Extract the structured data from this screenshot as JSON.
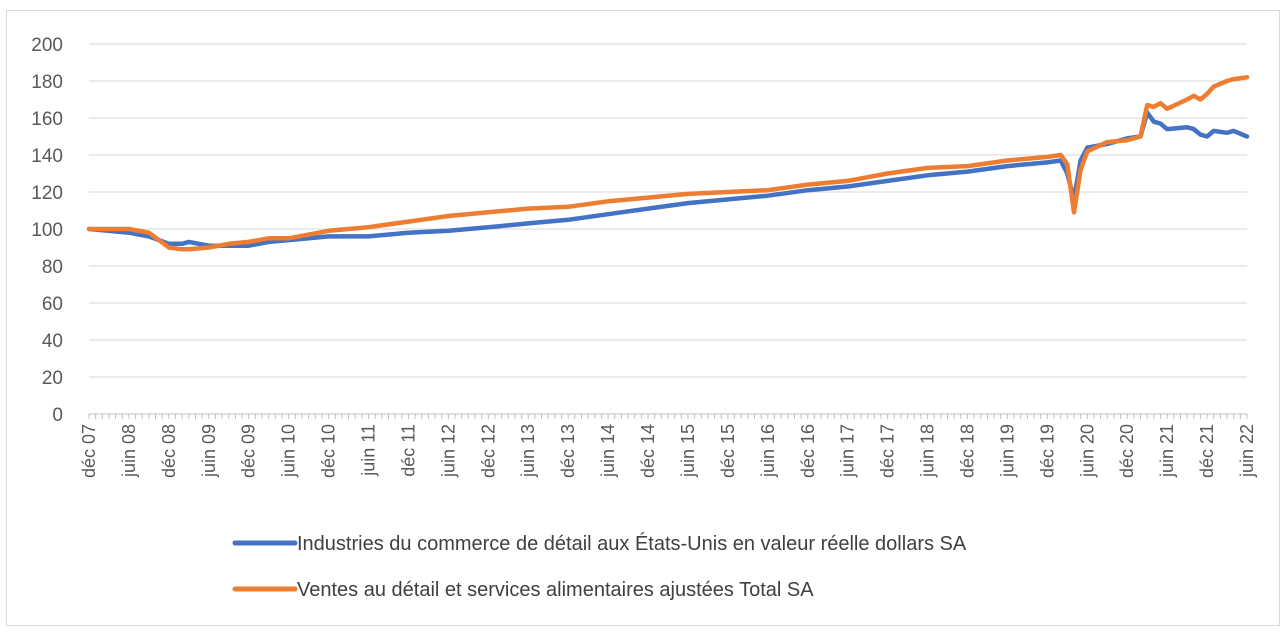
{
  "chart_data": {
    "type": "line",
    "title": "",
    "xlabel": "",
    "ylabel": "",
    "ylim": [
      0,
      200
    ],
    "yticks": [
      0,
      20,
      40,
      60,
      80,
      100,
      120,
      140,
      160,
      180,
      200
    ],
    "grid": "horizontal",
    "legend_position": "bottom",
    "x_start": "déc 07",
    "x_end": "juin 22",
    "xtick_labels": [
      "déc 07",
      "juin 08",
      "déc 08",
      "juin 09",
      "déc 09",
      "juin 10",
      "déc 10",
      "juin 11",
      "déc 11",
      "juin 12",
      "déc 12",
      "juin 13",
      "déc 13",
      "juin 14",
      "déc 14",
      "juin 15",
      "déc 15",
      "juin 16",
      "déc 16",
      "juin 17",
      "déc 17",
      "juin 18",
      "déc 18",
      "juin 19",
      "déc 19",
      "juin 20",
      "déc 20",
      "juin 21",
      "déc 21",
      "juin 22"
    ],
    "series": [
      {
        "name": "Industries du commerce de détail aux États-Unis en valeur réelle dollars SA",
        "color": "#4472c4",
        "points": [
          [
            "déc 07",
            100
          ],
          [
            "juin 08",
            98
          ],
          [
            "sept 08",
            96
          ],
          [
            "déc 08",
            92
          ],
          [
            "févr 09",
            92
          ],
          [
            "mars 09",
            93
          ],
          [
            "juin 09",
            91
          ],
          [
            "sept 09",
            91
          ],
          [
            "déc 09",
            91
          ],
          [
            "mars 10",
            93
          ],
          [
            "juin 10",
            94
          ],
          [
            "déc 10",
            96
          ],
          [
            "juin 11",
            96
          ],
          [
            "déc 11",
            98
          ],
          [
            "juin 12",
            99
          ],
          [
            "déc 12",
            101
          ],
          [
            "juin 13",
            103
          ],
          [
            "déc 13",
            105
          ],
          [
            "juin 14",
            108
          ],
          [
            "déc 14",
            111
          ],
          [
            "juin 15",
            114
          ],
          [
            "déc 15",
            116
          ],
          [
            "juin 16",
            118
          ],
          [
            "déc 16",
            121
          ],
          [
            "juin 17",
            123
          ],
          [
            "déc 17",
            126
          ],
          [
            "juin 18",
            129
          ],
          [
            "déc 18",
            131
          ],
          [
            "juin 19",
            134
          ],
          [
            "déc 19",
            136
          ],
          [
            "févr 20",
            137
          ],
          [
            "mars 20",
            130
          ],
          [
            "avr 20",
            116
          ],
          [
            "mai 20",
            137
          ],
          [
            "juin 20",
            144
          ],
          [
            "sept 20",
            146
          ],
          [
            "déc 20",
            149
          ],
          [
            "févr 21",
            150
          ],
          [
            "mars 21",
            163
          ],
          [
            "avr 21",
            158
          ],
          [
            "mai 21",
            157
          ],
          [
            "juin 21",
            154
          ],
          [
            "sept 21",
            155
          ],
          [
            "oct 21",
            154
          ],
          [
            "nov 21",
            151
          ],
          [
            "déc 21",
            150
          ],
          [
            "janv 22",
            153
          ],
          [
            "mars 22",
            152
          ],
          [
            "avr 22",
            153
          ],
          [
            "juin 22",
            150
          ]
        ]
      },
      {
        "name": "Ventes au détail et services alimentaires ajustées Total SA",
        "color": "#ed7d31",
        "points": [
          [
            "déc 07",
            100
          ],
          [
            "juin 08",
            100
          ],
          [
            "sept 08",
            98
          ],
          [
            "déc 08",
            90
          ],
          [
            "févr 09",
            89
          ],
          [
            "mars 09",
            89
          ],
          [
            "juin 09",
            90
          ],
          [
            "sept 09",
            92
          ],
          [
            "déc 09",
            93
          ],
          [
            "mars 10",
            95
          ],
          [
            "juin 10",
            95
          ],
          [
            "déc 10",
            99
          ],
          [
            "juin 11",
            101
          ],
          [
            "déc 11",
            104
          ],
          [
            "juin 12",
            107
          ],
          [
            "déc 12",
            109
          ],
          [
            "juin 13",
            111
          ],
          [
            "déc 13",
            112
          ],
          [
            "juin 14",
            115
          ],
          [
            "déc 14",
            117
          ],
          [
            "juin 15",
            119
          ],
          [
            "déc 15",
            120
          ],
          [
            "juin 16",
            121
          ],
          [
            "déc 16",
            124
          ],
          [
            "juin 17",
            126
          ],
          [
            "déc 17",
            130
          ],
          [
            "juin 18",
            133
          ],
          [
            "déc 18",
            134
          ],
          [
            "juin 19",
            137
          ],
          [
            "déc 19",
            139
          ],
          [
            "févr 20",
            140
          ],
          [
            "mars 20",
            135
          ],
          [
            "avr 20",
            109
          ],
          [
            "mai 20",
            132
          ],
          [
            "juin 20",
            142
          ],
          [
            "sept 20",
            147
          ],
          [
            "déc 20",
            148
          ],
          [
            "févr 21",
            150
          ],
          [
            "mars 21",
            167
          ],
          [
            "avr 21",
            166
          ],
          [
            "mai 21",
            168
          ],
          [
            "juin 21",
            165
          ],
          [
            "sept 21",
            170
          ],
          [
            "oct 21",
            172
          ],
          [
            "nov 21",
            170
          ],
          [
            "déc 21",
            173
          ],
          [
            "janv 22",
            177
          ],
          [
            "mars 22",
            180
          ],
          [
            "avr 22",
            181
          ],
          [
            "juin 22",
            182
          ]
        ]
      }
    ]
  }
}
